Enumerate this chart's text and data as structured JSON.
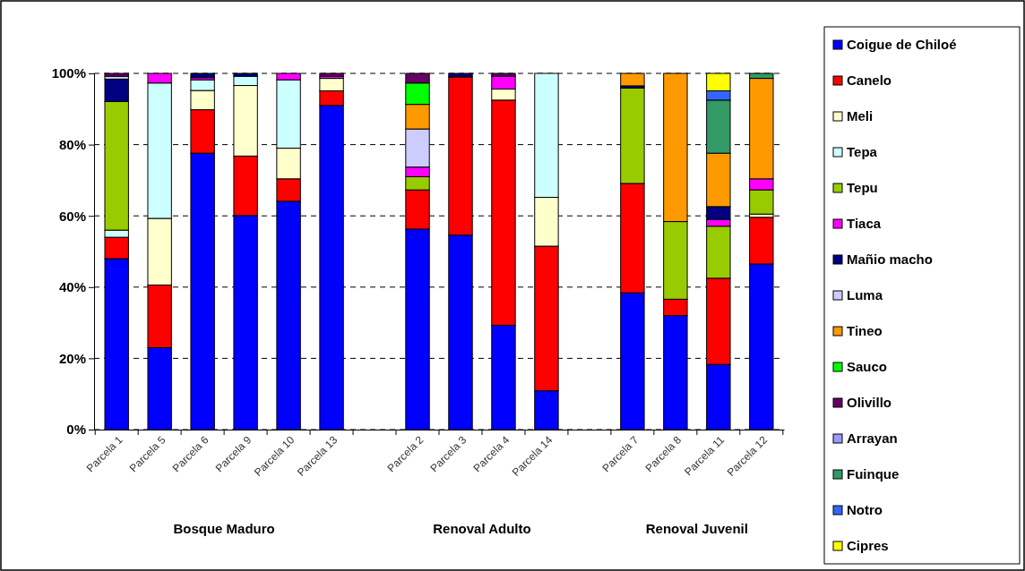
{
  "chart_data": {
    "type": "bar",
    "stacked": true,
    "categories": [
      "Parcela 1",
      "Parcela 5",
      "Parcela 6",
      "Parcela 9",
      "Parcela 10",
      "Parcela 13",
      null,
      "Parcela 2",
      "Parcela 3",
      "Parcela 4",
      "Parcela 14",
      null,
      "Parcela 7",
      "Parcela 8",
      "Parcela 11",
      "Parcela 12"
    ],
    "ylim": [
      0,
      100
    ],
    "yticks": [
      {
        "value": 0,
        "label": "0%"
      },
      {
        "value": 20,
        "label": "20%"
      },
      {
        "value": 40,
        "label": "40%"
      },
      {
        "value": 60,
        "label": "60%"
      },
      {
        "value": 80,
        "label": "80%"
      },
      {
        "value": 100,
        "label": "100%"
      }
    ],
    "grid": "y",
    "legend": "right",
    "annotations": [
      "Bosque Maduro",
      "Renoval Adulto",
      "Renoval Juvenil"
    ],
    "series": [
      {
        "name": "Coigue de Chiloé",
        "color": "#0000ff",
        "values": [
          48,
          23,
          77.6,
          60.1,
          64.1,
          91,
          null,
          56.3,
          54.6,
          29.3,
          10.9,
          null,
          38.4,
          32,
          18.3,
          46.5
        ]
      },
      {
        "name": "Canelo",
        "color": "#ff0000",
        "values": [
          6,
          17.6,
          12.2,
          16.7,
          6.3,
          4.1,
          null,
          11,
          44.4,
          63.2,
          40.6,
          null,
          30.7,
          4.6,
          24.2,
          13.1
        ]
      },
      {
        "name": "Meli",
        "color": "#ffffcc",
        "values": [
          0,
          18.7,
          5.4,
          19.8,
          8.6,
          3.5,
          null,
          0,
          0,
          3.1,
          13.7,
          null,
          0,
          0,
          0,
          0.9
        ]
      },
      {
        "name": "Tepa",
        "color": "#ccffff",
        "values": [
          2,
          38,
          3,
          2.6,
          19.2,
          0,
          null,
          0,
          0,
          0,
          34.8,
          null,
          0,
          0,
          0,
          0
        ]
      },
      {
        "name": "Tepu",
        "color": "#99cc00",
        "values": [
          36.1,
          0,
          0,
          0,
          0,
          0,
          null,
          3.7,
          0,
          0,
          0,
          null,
          26.8,
          21.8,
          14.6,
          6.8
        ]
      },
      {
        "name": "Tiaca",
        "color": "#ff00ff",
        "values": [
          0,
          2.7,
          0.6,
          0,
          1.8,
          0.6,
          null,
          2.7,
          0,
          3.6,
          0,
          null,
          0,
          0,
          1.9,
          3.1
        ]
      },
      {
        "name": "Mañio macho",
        "color": "#000080",
        "values": [
          6.3,
          0,
          1.2,
          0.8,
          0,
          0,
          null,
          0,
          1,
          0,
          0,
          null,
          0.6,
          0,
          3.6,
          0
        ]
      },
      {
        "name": "Luma",
        "color": "#ccccff",
        "values": [
          0.8,
          0,
          0,
          0,
          0,
          0,
          null,
          10.7,
          0,
          0,
          0,
          null,
          0,
          0,
          0,
          0
        ]
      },
      {
        "name": "Tineo",
        "color": "#ff9900",
        "values": [
          0,
          0,
          0,
          0,
          0,
          0,
          null,
          6.9,
          0,
          0,
          0,
          null,
          3.5,
          41.6,
          15,
          28.2
        ]
      },
      {
        "name": "Sauco",
        "color": "#00ff00",
        "values": [
          0,
          0,
          0,
          0,
          0,
          0,
          null,
          6,
          0,
          0,
          0,
          null,
          0,
          0,
          0,
          0
        ]
      },
      {
        "name": "Olivillo",
        "color": "#660066",
        "values": [
          0.8,
          0,
          0,
          0,
          0,
          0.8,
          null,
          2.7,
          0,
          0.8,
          0,
          null,
          0,
          0,
          0,
          0
        ]
      },
      {
        "name": "Arrayan",
        "color": "#9999ff",
        "values": [
          0,
          0,
          0,
          0,
          0,
          0,
          null,
          0,
          0,
          0,
          0,
          null,
          0,
          0,
          0,
          0
        ]
      },
      {
        "name": "Fuinque",
        "color": "#339966",
        "values": [
          0,
          0,
          0,
          0,
          0,
          0,
          null,
          0,
          0,
          0,
          0,
          null,
          0,
          0,
          14.9,
          1.4
        ]
      },
      {
        "name": "Notro",
        "color": "#3366ff",
        "values": [
          0,
          0,
          0,
          0,
          0,
          0,
          null,
          0,
          0,
          0,
          0,
          null,
          0,
          0,
          2.6,
          0
        ]
      },
      {
        "name": "Cipres",
        "color": "#ffff00",
        "values": [
          0,
          0,
          0,
          0,
          0,
          0,
          null,
          0,
          0,
          0,
          0,
          null,
          0,
          0,
          4.9,
          0
        ]
      }
    ]
  }
}
